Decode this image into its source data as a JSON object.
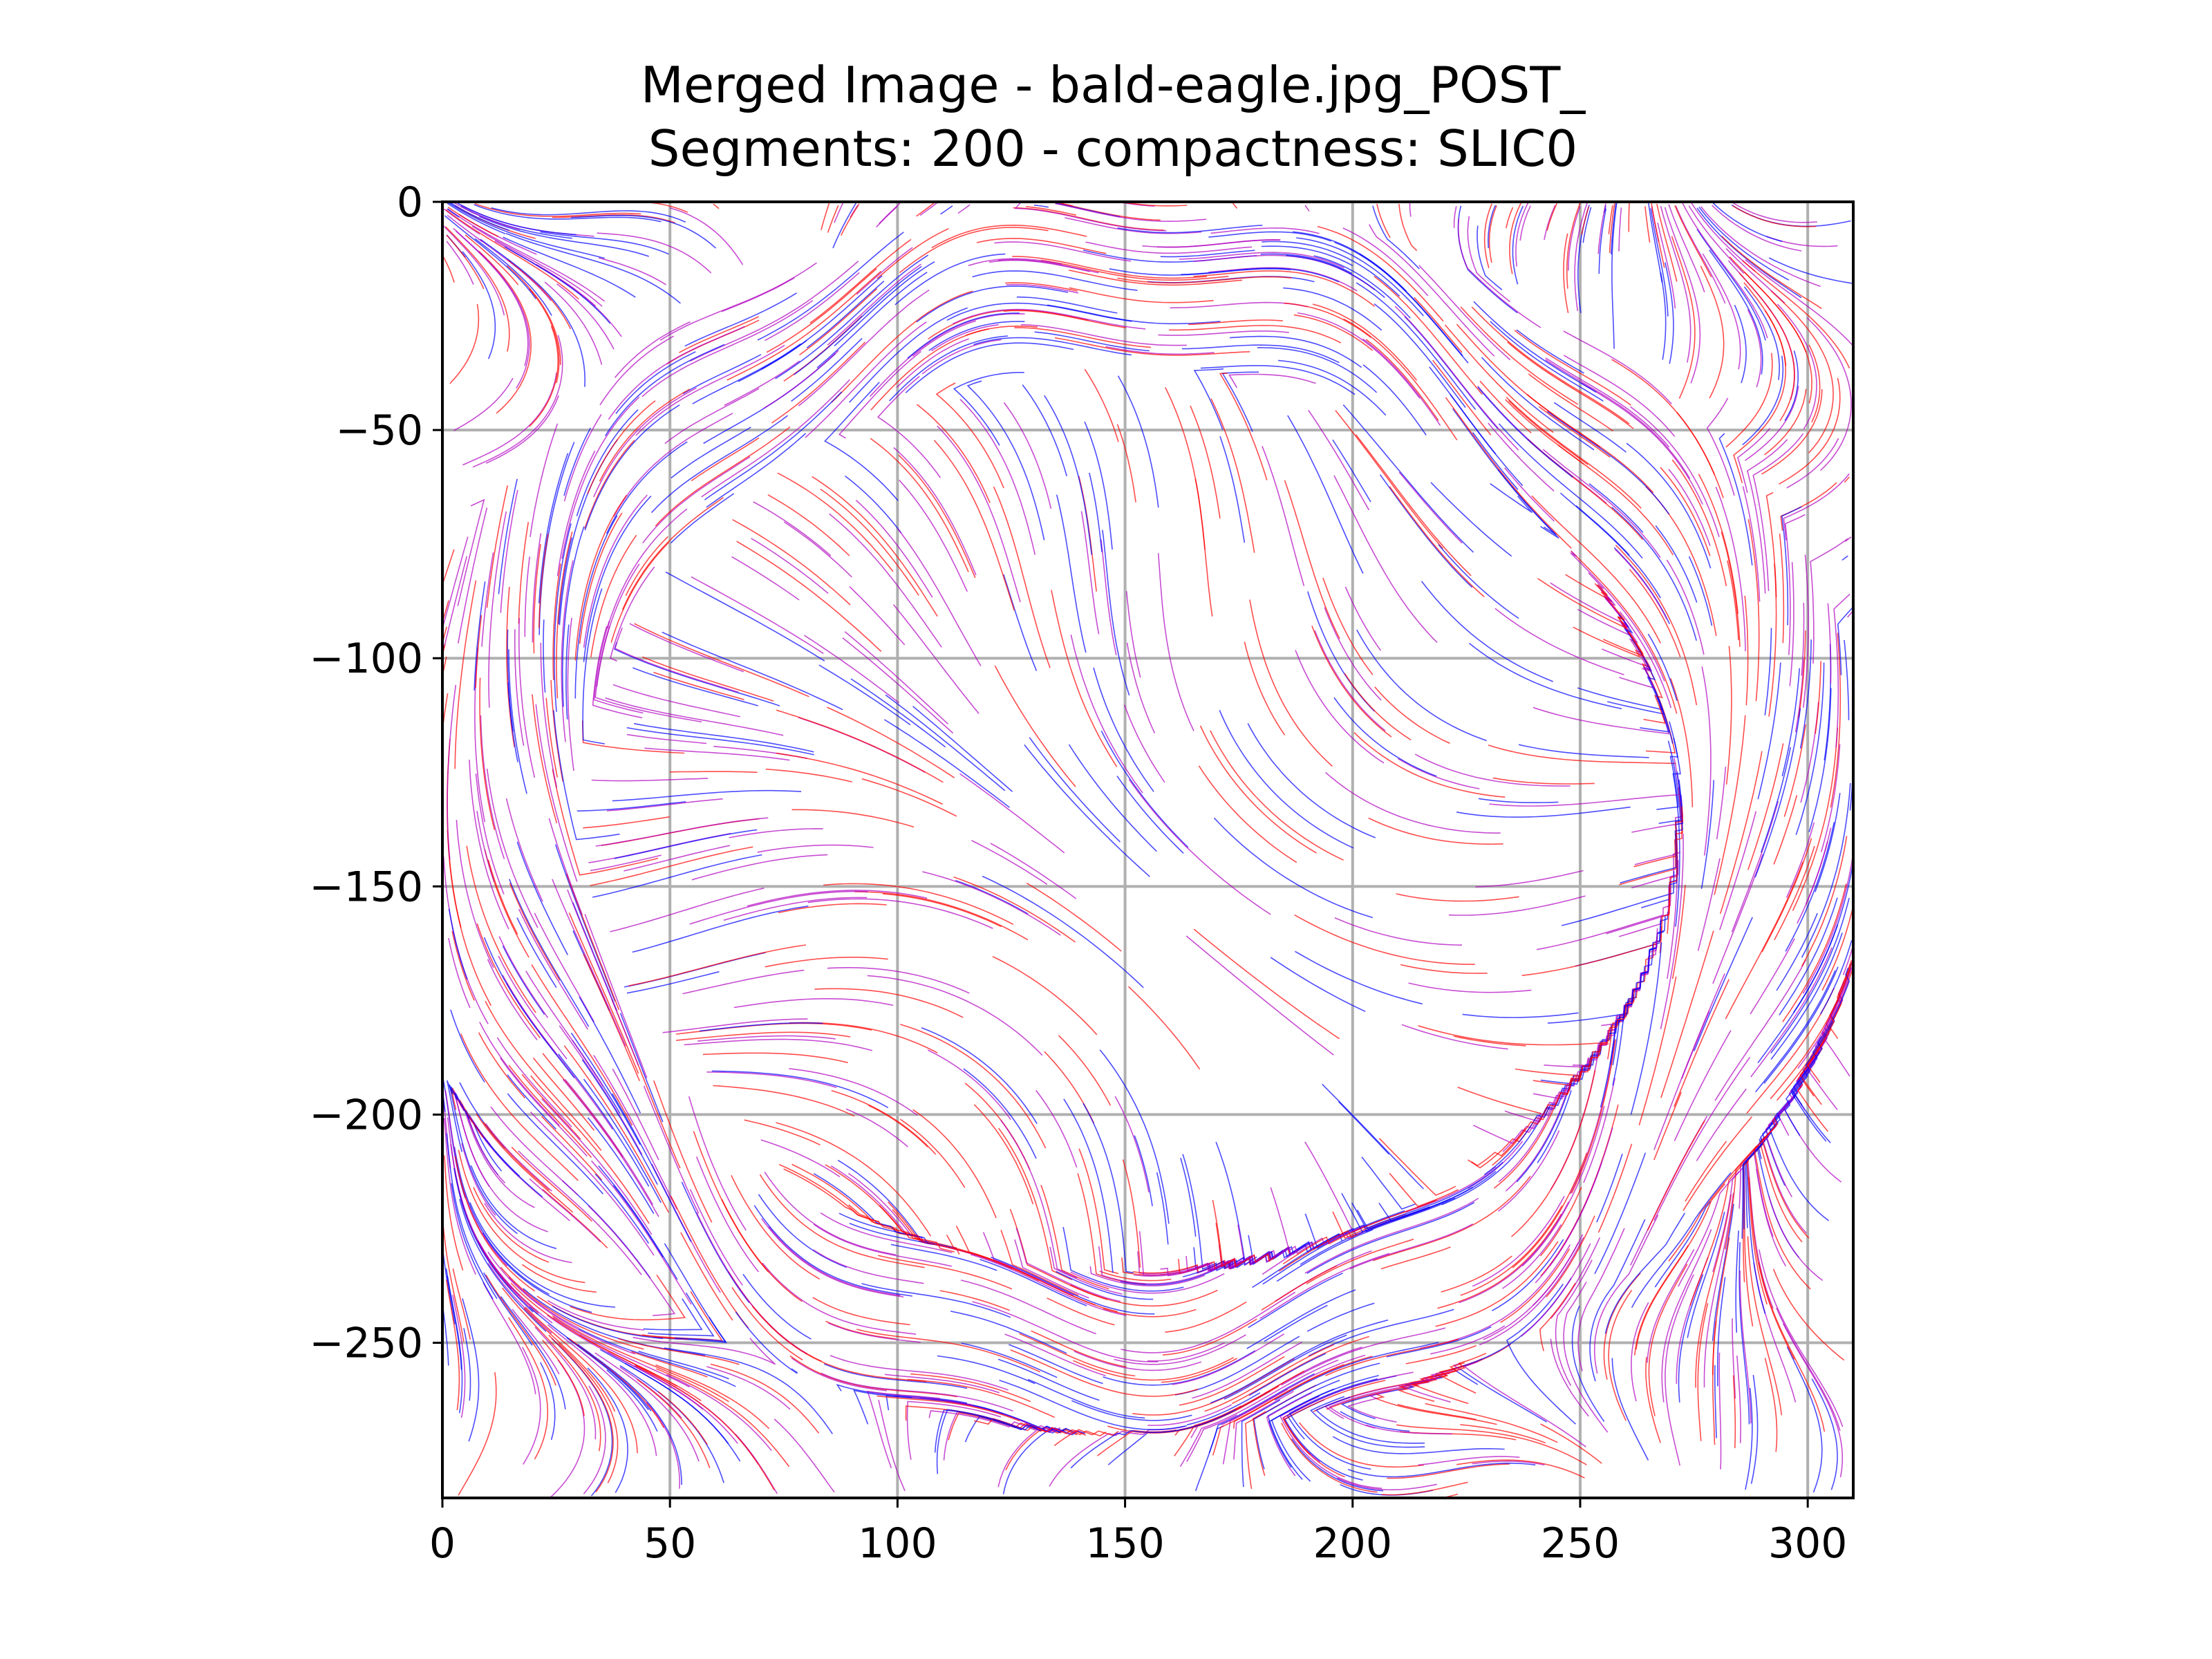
{
  "chart_data": {
    "type": "streamplot",
    "title_line1": "Merged Image - bald-eagle.jpg_POST_",
    "title_line2": "Segments: 200 - compactness: SLIC0",
    "xlabel": "",
    "ylabel": "",
    "xlim": [
      0,
      310
    ],
    "ylim": [
      -284,
      0
    ],
    "x_ticks": [
      0,
      50,
      100,
      150,
      200,
      250,
      300
    ],
    "y_ticks": [
      0,
      -50,
      -100,
      -150,
      -200,
      -250
    ],
    "x_tick_labels": [
      "0",
      "50",
      "100",
      "150",
      "200",
      "250",
      "300"
    ],
    "y_tick_labels": [
      "0",
      "−50",
      "−100",
      "−150",
      "−200",
      "−250"
    ],
    "grid": true,
    "series": [
      {
        "color": "#ff0000"
      },
      {
        "color": "#0000ff"
      },
      {
        "color": "#b000c0"
      }
    ]
  }
}
